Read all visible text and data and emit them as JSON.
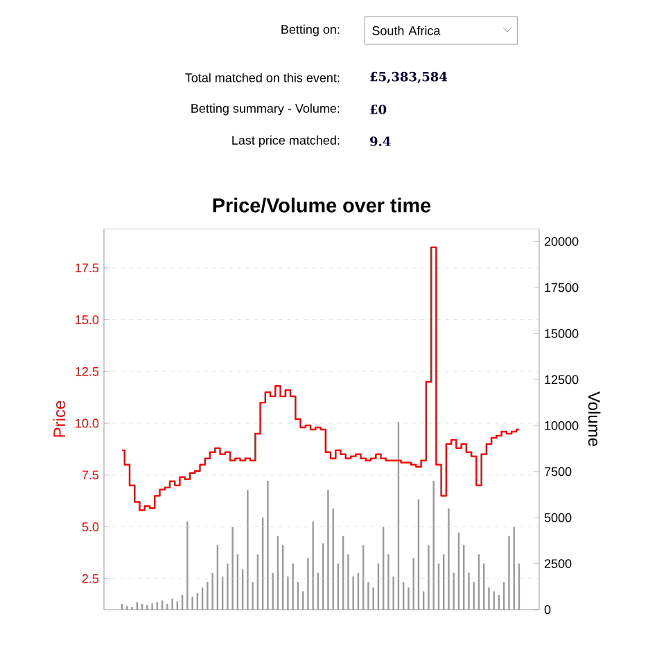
{
  "chart_data": {
    "type": "step",
    "title": "Price/Volume over time",
    "annotations": [
      "Betting on:",
      "South Africa",
      "Total matched on this event:",
      "£5,383,584",
      "Betting summary - Volume:",
      "£0",
      "Last price matched:",
      "9.4"
    ],
    "ylabel": "Price",
    "y2label": "Volume",
    "categories": [
      null,
      null,
      null,
      null,
      null,
      null,
      null,
      null,
      null,
      null,
      null,
      null,
      null,
      null,
      null,
      null,
      null,
      null,
      null,
      null,
      null,
      null,
      null,
      null,
      null,
      null,
      null,
      null,
      null,
      null,
      null,
      null,
      null,
      null,
      null,
      null,
      null,
      null,
      null,
      null,
      null,
      null,
      null,
      null,
      null,
      null,
      null,
      null,
      null,
      null,
      null,
      null,
      null,
      null,
      null,
      null,
      null,
      null,
      null,
      null,
      null,
      null,
      null,
      null,
      null,
      null,
      null,
      null,
      null,
      null,
      null,
      null,
      null,
      null,
      null,
      null,
      null,
      null,
      null,
      null
    ],
    "series": [
      {
        "type": "bar",
        "axis": "y2",
        "color": "#999999",
        "values": [
          300,
          200,
          150,
          400,
          300,
          250,
          350,
          400,
          500,
          300,
          600,
          450,
          800,
          4800,
          700,
          900,
          1200,
          1500,
          2000,
          3500,
          1800,
          2500,
          4500,
          3000,
          2200,
          6500,
          1500,
          3000,
          5000,
          7000,
          2000,
          4000,
          3500,
          1800,
          2500,
          1500,
          1000,
          2800,
          4800,
          2000,
          3600,
          6500,
          5500,
          2500,
          4000,
          3000,
          1800,
          2000,
          3500,
          1500,
          1200,
          2500,
          4500,
          3000,
          1800,
          10200,
          1500,
          1200,
          2800,
          6000,
          1000,
          3500,
          7000,
          2500,
          3000,
          5500,
          2000,
          4200,
          3500,
          2000,
          1500,
          3000,
          2500,
          1200,
          1000,
          800,
          1500,
          4000,
          4500,
          2500
        ]
      },
      {
        "axis": "y",
        "color": "#ff0000",
        "values": [
          8.7,
          8.0,
          7.0,
          6.2,
          5.8,
          6.0,
          5.9,
          6.5,
          6.8,
          6.9,
          7.2,
          7.0,
          7.4,
          7.3,
          7.6,
          7.7,
          8.0,
          8.3,
          8.6,
          8.8,
          8.5,
          8.6,
          8.2,
          8.3,
          8.2,
          8.3,
          8.2,
          9.5,
          11.0,
          11.5,
          11.3,
          11.8,
          11.3,
          11.6,
          11.3,
          10.2,
          9.8,
          9.9,
          9.7,
          9.8,
          9.7,
          8.6,
          8.3,
          8.7,
          8.5,
          8.3,
          8.4,
          8.5,
          8.3,
          8.2,
          8.3,
          8.5,
          8.3,
          8.2,
          8.2,
          8.2,
          8.1,
          8.1,
          8.0,
          7.9,
          8.2,
          12.0,
          18.5,
          8.0,
          6.5,
          9.0,
          9.2,
          8.8,
          9.0,
          8.6,
          8.4,
          7.0,
          8.5,
          9.0,
          9.3,
          9.4,
          9.6,
          9.5,
          9.6,
          9.7
        ]
      }
    ],
    "ylim": [
      1.0,
      19.4
    ],
    "yticks": [
      2.5,
      {
        "value": 5,
        "label": "5.0"
      },
      7.5,
      {
        "value": 10,
        "label": "10.0"
      },
      12.5,
      {
        "value": 15,
        "label": "15.0"
      },
      17.5
    ],
    "y2lim": [
      0,
      20700
    ],
    "y2ticks": [
      0,
      2500,
      5000,
      7500,
      10000,
      12500,
      15000,
      17500,
      20000
    ],
    "grid": "y",
    "tick_labels": "y"
  }
}
